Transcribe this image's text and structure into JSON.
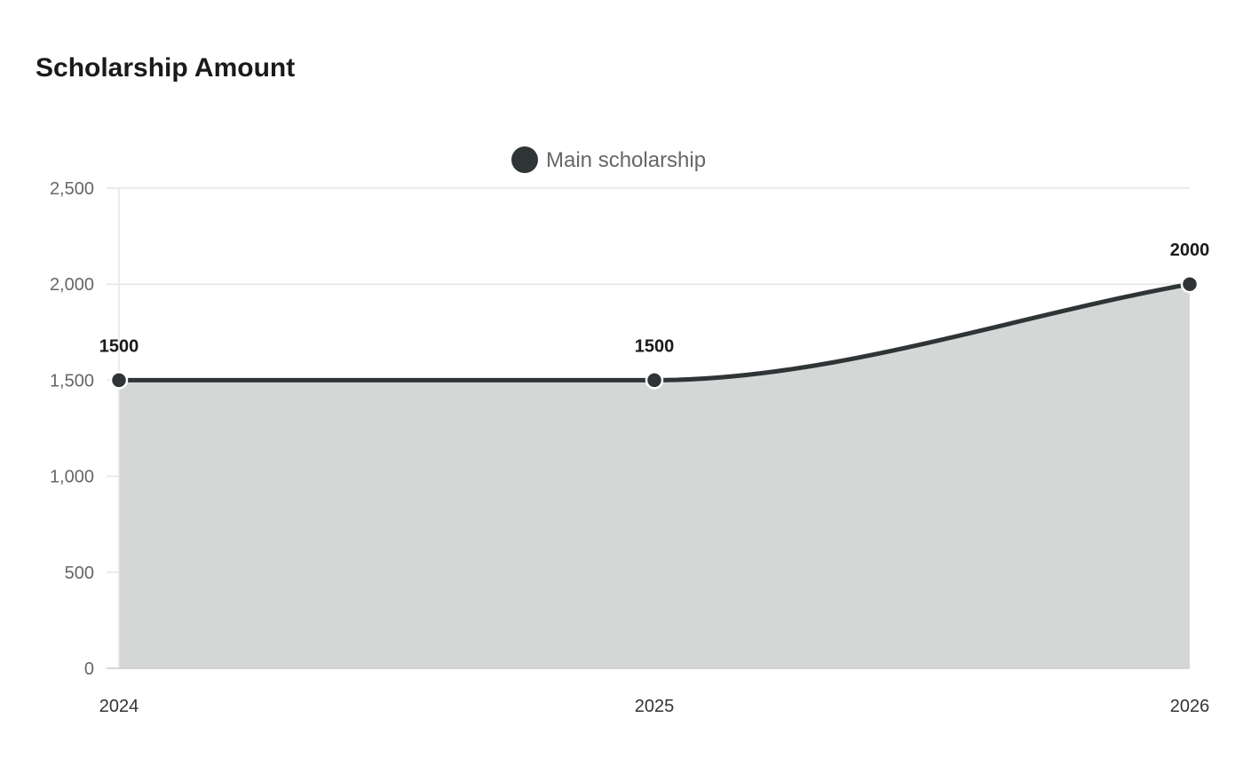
{
  "chart_data": {
    "type": "area",
    "title": "Scholarship Amount",
    "xlabel": "",
    "ylabel": "",
    "categories": [
      "2024",
      "2025",
      "2026"
    ],
    "series": [
      {
        "name": "Main scholarship",
        "values": [
          1500,
          1500,
          2000
        ]
      }
    ],
    "ylim": [
      0,
      2500
    ],
    "yticks": [
      0,
      500,
      1000,
      1500,
      2000,
      2500
    ],
    "ytick_labels": [
      "0",
      "500",
      "1,000",
      "1,500",
      "2,000",
      "2,500"
    ],
    "grid": true,
    "legend_position": "top-center",
    "show_data_labels": true,
    "colors": {
      "line": "#2f3536",
      "fill": "#d5d7d6",
      "grid": "#e6e6e6",
      "axis": "#cccccc"
    }
  }
}
